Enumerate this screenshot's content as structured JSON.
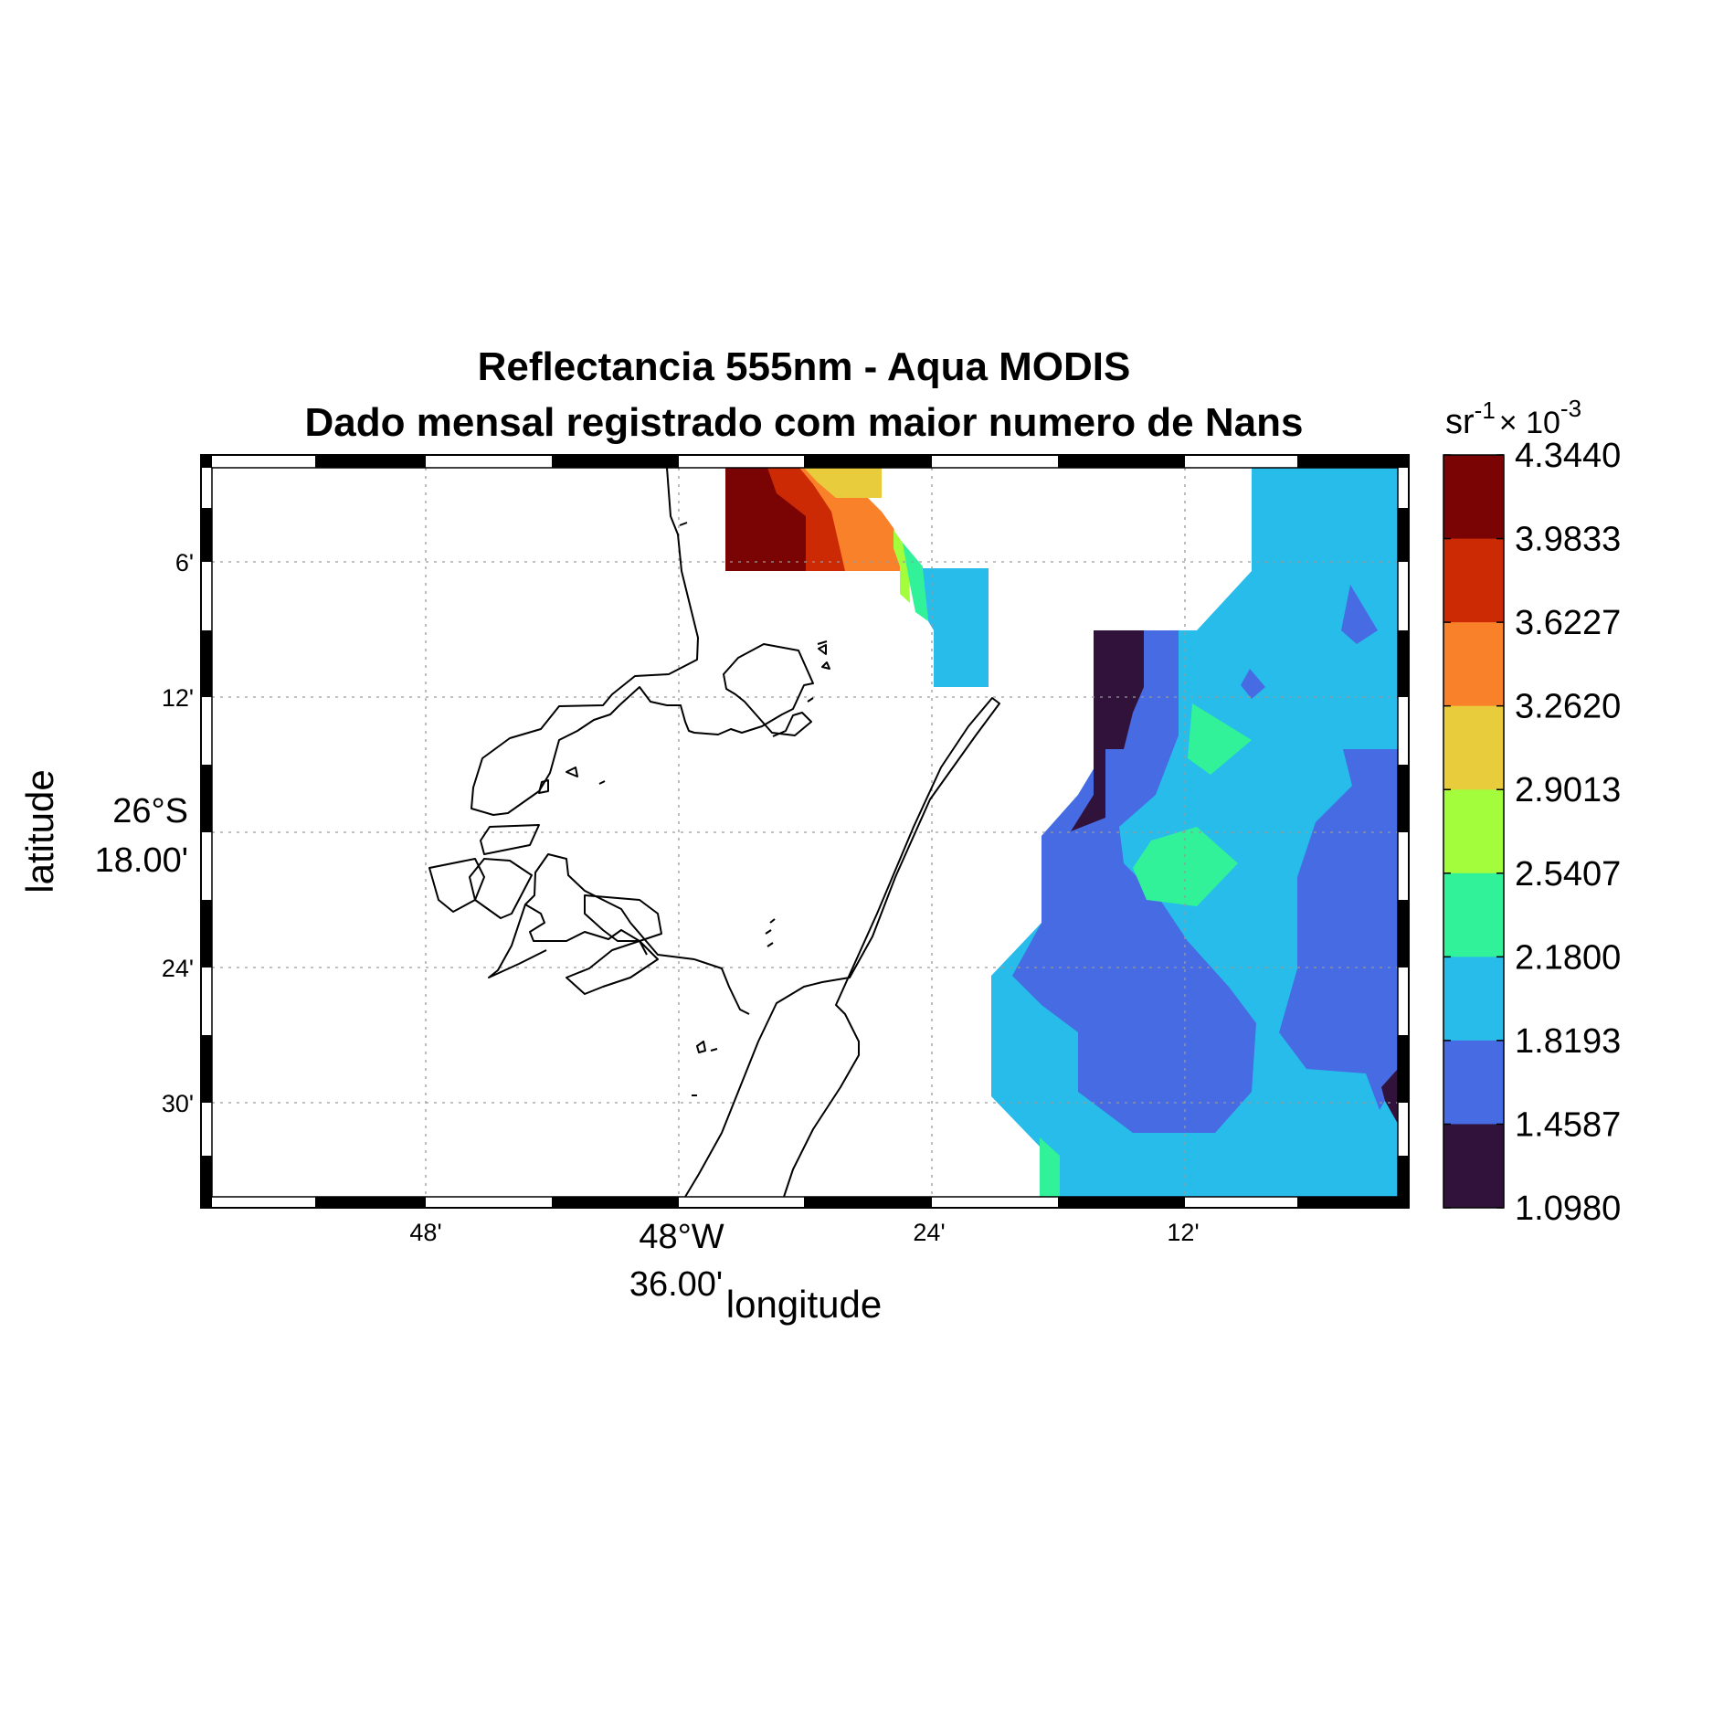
{
  "title": {
    "line1": "Reflectancia 555nm - Aqua MODIS",
    "line2": "Dado mensal registrado com maior numero de Nans"
  },
  "axes": {
    "xlabel": "longitude",
    "ylabel": "latitude",
    "x_ticks": [
      {
        "label": "48'",
        "minutes": 48,
        "major": false
      },
      {
        "label_line1": "48°W",
        "label_line2": "36.00'",
        "minutes": 36,
        "major": true
      },
      {
        "label": "24'",
        "minutes": 24,
        "major": false
      },
      {
        "label": "12'",
        "minutes": 12,
        "major": false
      }
    ],
    "y_ticks": [
      {
        "label": "6'",
        "minutes": 6,
        "major": false
      },
      {
        "label": "12'",
        "minutes": 12,
        "major": false
      },
      {
        "label_line1": "26°S",
        "label_line2": "18.00'",
        "minutes": 18,
        "major": true
      },
      {
        "label": "24'",
        "minutes": 24,
        "major": false
      },
      {
        "label": "30'",
        "minutes": 30,
        "major": false
      }
    ],
    "grid": true
  },
  "colorbar": {
    "units_base": "sr",
    "units_base_exp": "-1",
    "multiplier": "× 10",
    "multiplier_exp": "-3",
    "ticks": [
      "4.3440",
      "3.9833",
      "3.6227",
      "3.2620",
      "2.9013",
      "2.5407",
      "2.1800",
      "1.8193",
      "1.4587",
      "1.0980"
    ],
    "colors": [
      "#7a0403",
      "#cb2a04",
      "#f9812a",
      "#e9cc3b",
      "#a3fd3d",
      "#31f299",
      "#28bceb",
      "#466be3",
      "#30123b"
    ]
  },
  "map_regions": [
    {
      "name": "north-dark-red",
      "color": "#7a0403"
    },
    {
      "name": "north-red",
      "color": "#cb2a04"
    },
    {
      "name": "north-orange",
      "color": "#f9812a"
    },
    {
      "name": "north-yellow",
      "color": "#e9cc3b"
    },
    {
      "name": "north-lime",
      "color": "#a3fd3d"
    },
    {
      "name": "north-green",
      "color": "#31f299"
    },
    {
      "name": "north-cyan",
      "color": "#28bceb"
    },
    {
      "name": "east-cyan",
      "color": "#28bceb"
    },
    {
      "name": "east-blue",
      "color": "#466be3"
    },
    {
      "name": "east-dark",
      "color": "#30123b"
    },
    {
      "name": "east-green",
      "color": "#31f299"
    }
  ]
}
